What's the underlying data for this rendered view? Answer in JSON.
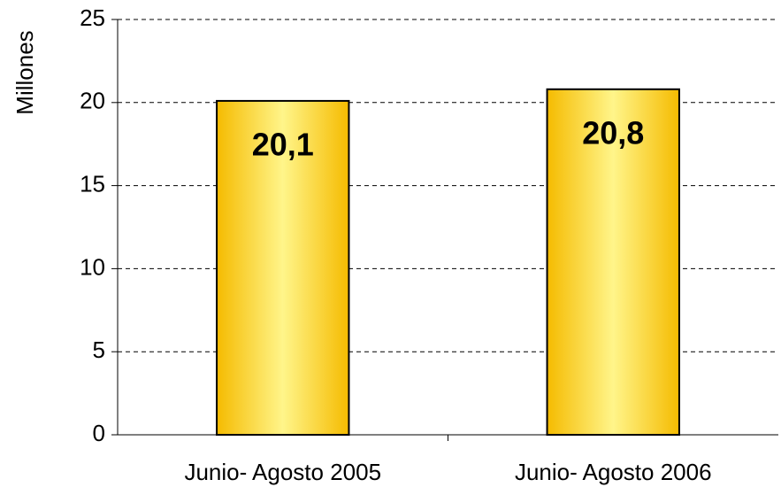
{
  "chart_data": {
    "type": "bar",
    "y_label": "Millones",
    "categories": [
      "Junio- Agosto 2005",
      "Junio- Agosto 2006"
    ],
    "values": [
      20.1,
      20.8
    ],
    "value_labels": [
      "20,1",
      "20,8"
    ],
    "color": "#f7c600",
    "ylim": [
      0,
      25
    ],
    "yticks": [
      0,
      5,
      10,
      15,
      20,
      25
    ],
    "grid": true
  }
}
